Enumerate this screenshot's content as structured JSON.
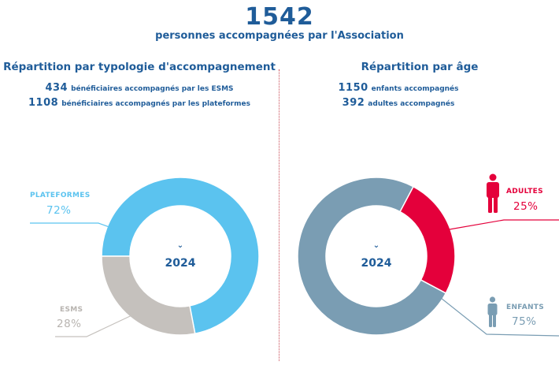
{
  "header": {
    "total": "1542",
    "subtitle": "personnes accompagnées par l'Association"
  },
  "left": {
    "title": "Répartition par typologie d'accompagnement",
    "stats": [
      {
        "num": "434",
        "text": "bénéficiaires accompagnés par les ESMS"
      },
      {
        "num": "1108",
        "text": "bénéficiaires accompagnés par les plateformes"
      }
    ]
  },
  "right": {
    "title": "Répartition par âge",
    "stats": [
      {
        "num": "1150",
        "text": "enfants accompagnés"
      },
      {
        "num": "392",
        "text": "adultes accompagnés"
      }
    ]
  },
  "chart_data": [
    {
      "type": "pie",
      "year_label": "2024",
      "slices": [
        {
          "name": "PLATEFORMES",
          "label": "72%",
          "value": 72,
          "color": "#5bc3ef"
        },
        {
          "name": "ESMS",
          "label": "28%",
          "value": 28,
          "color": "#c5c1bd"
        }
      ]
    },
    {
      "type": "pie",
      "year_label": "2024",
      "slices": [
        {
          "name": "ADULTES",
          "label": "25%",
          "value": 25,
          "color": "#e4003b"
        },
        {
          "name": "ENFANTS",
          "label": "75%",
          "value": 75,
          "color": "#7a9db3"
        }
      ]
    }
  ],
  "icons": {
    "adults": "person-icon",
    "children": "child-icon"
  }
}
